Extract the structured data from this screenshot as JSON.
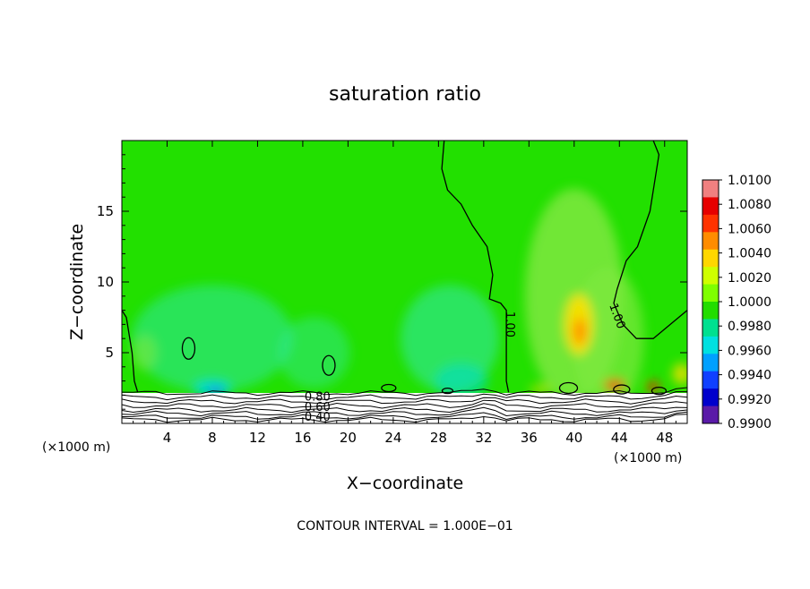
{
  "chart_data": {
    "type": "heatmap",
    "title": "saturation ratio",
    "xlabel": "X−coordinate",
    "ylabel": "Z−coordinate",
    "x_unit_left": "(×1000 m)",
    "x_unit_right": "(×1000 m)",
    "footer": "CONTOUR INTERVAL = 1.000E−01",
    "xlim": [
      0,
      50
    ],
    "ylim": [
      0,
      20
    ],
    "x_ticks": [
      4,
      8,
      12,
      16,
      20,
      24,
      28,
      32,
      36,
      40,
      44,
      48
    ],
    "y_ticks": [
      5,
      10,
      15
    ],
    "contour_labels": [
      {
        "text": "1.00",
        "x": 34.0,
        "y": 7.0
      },
      {
        "text": "1.00",
        "x": 43.5,
        "y": 7.5
      },
      {
        "text": "0.80",
        "x": 17.3,
        "y": 1.6
      },
      {
        "text": "0.60",
        "x": 17.3,
        "y": 0.9
      },
      {
        "text": "0.40",
        "x": 17.3,
        "y": 0.2
      }
    ],
    "colorbar": {
      "labels": [
        "1.0100",
        "1.0080",
        "1.0060",
        "1.0040",
        "1.0020",
        "1.0000",
        "0.9980",
        "0.9960",
        "0.9940",
        "0.9920",
        "0.9900"
      ],
      "colors": [
        "#f08080",
        "#e60000",
        "#ff3300",
        "#ff8c00",
        "#ffd700",
        "#cfff00",
        "#7fff00",
        "#22dd00",
        "#00e090",
        "#00e0e0",
        "#00a0ff",
        "#1040ff",
        "#0000cc",
        "#5a1aa8"
      ]
    },
    "field_colors": {
      "background": "#22e000",
      "light_green": "#7fe840",
      "teal": "#30e8a0",
      "cyan": "#00dcd0",
      "blue": "#1060ff",
      "yellow": "#ffe000",
      "orange": "#ff9000",
      "red": "#ff2000",
      "saturated": "#ffffff"
    }
  }
}
